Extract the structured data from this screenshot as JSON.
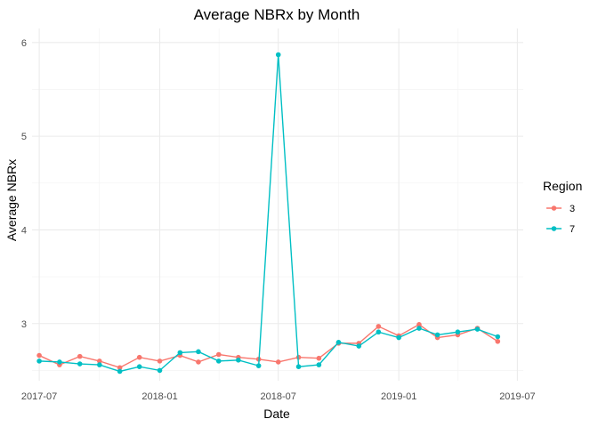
{
  "chart_data": {
    "type": "line",
    "title": "Average NBRx by Month",
    "xlabel": "Date",
    "ylabel": "Average NBRx",
    "x_ticks": [
      "2017-07",
      "2018-01",
      "2018-07",
      "2019-01",
      "2019-07"
    ],
    "y_ticks": [
      "3",
      "4",
      "5",
      "6"
    ],
    "ylim": [
      2.39,
      6.15
    ],
    "xlim": [
      "2017-06-20",
      "2019-07-10"
    ],
    "grid": true,
    "legend": {
      "title": "Region",
      "placement": "right"
    },
    "x": [
      "2017-07",
      "2017-08",
      "2017-09",
      "2017-10",
      "2017-11",
      "2017-12",
      "2018-01",
      "2018-02",
      "2018-03",
      "2018-04",
      "2018-05",
      "2018-06",
      "2018-07",
      "2018-08",
      "2018-09",
      "2018-10",
      "2018-11",
      "2018-12",
      "2019-01",
      "2019-02",
      "2019-03",
      "2019-04",
      "2019-05",
      "2019-06"
    ],
    "series": [
      {
        "name": "3",
        "color": "#F8766D",
        "values": [
          2.66,
          2.56,
          2.65,
          2.6,
          2.53,
          2.64,
          2.6,
          2.66,
          2.59,
          2.67,
          2.64,
          2.62,
          2.59,
          2.64,
          2.63,
          2.79,
          2.79,
          2.97,
          2.87,
          2.99,
          2.85,
          2.88,
          2.95,
          2.81
        ]
      },
      {
        "name": "7",
        "color": "#00BFC4",
        "values": [
          2.6,
          2.59,
          2.57,
          2.56,
          2.49,
          2.54,
          2.5,
          2.69,
          2.7,
          2.6,
          2.61,
          2.55,
          5.87,
          2.54,
          2.56,
          2.8,
          2.76,
          2.91,
          2.85,
          2.95,
          2.88,
          2.91,
          2.94,
          2.86
        ]
      }
    ]
  }
}
